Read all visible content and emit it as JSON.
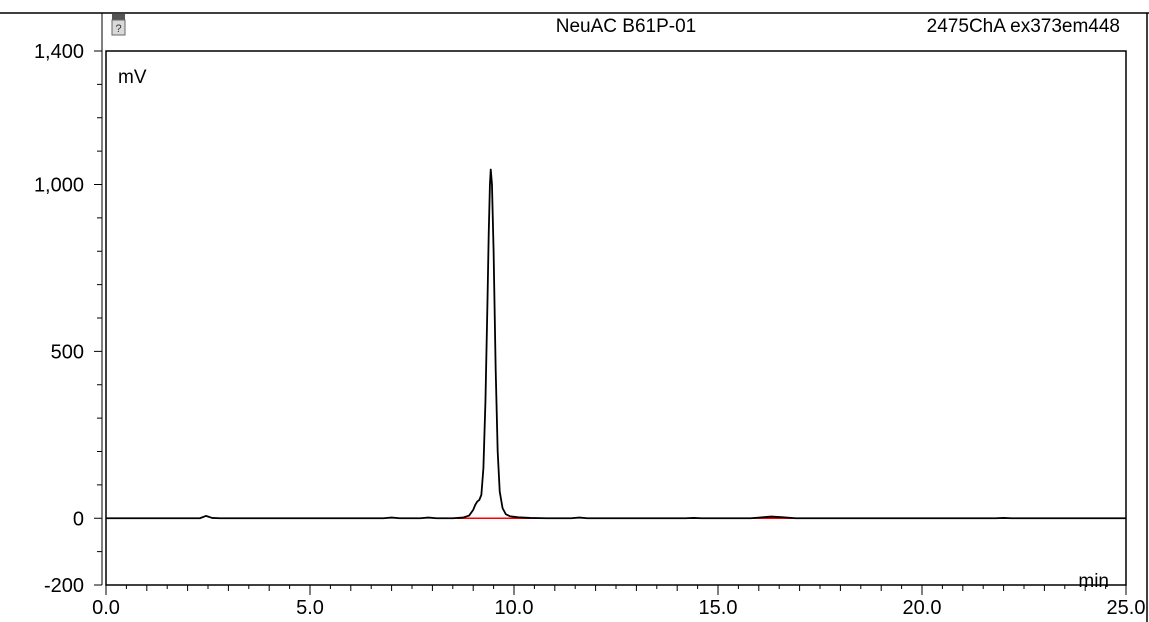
{
  "header": {
    "sample_name": "NeuAC B61P-01",
    "channel": "2475ChA ex373em448",
    "vial_icon": "vial-icon"
  },
  "chart_data": {
    "type": "line",
    "xlabel": "min",
    "ylabel": "mV",
    "xlim": [
      0,
      25
    ],
    "ylim": [
      -200,
      1400
    ],
    "x_ticks": [
      "0.0",
      "5.0",
      "10.0",
      "15.0",
      "20.0",
      "25.0"
    ],
    "x_tick_values": [
      0,
      5,
      10,
      15,
      20,
      25
    ],
    "y_ticks": [
      "-200",
      "0",
      "500",
      "1,000",
      "1,400"
    ],
    "y_tick_values": [
      -200,
      0,
      500,
      1000,
      1400
    ],
    "grid": false,
    "series": [
      {
        "color": "#000000",
        "points": [
          [
            0.0,
            0
          ],
          [
            2.3,
            0
          ],
          [
            2.45,
            7
          ],
          [
            2.6,
            1
          ],
          [
            2.8,
            0
          ],
          [
            6.8,
            0
          ],
          [
            7.0,
            2
          ],
          [
            7.2,
            0
          ],
          [
            7.7,
            0
          ],
          [
            7.9,
            2
          ],
          [
            8.1,
            0
          ],
          [
            8.5,
            0
          ],
          [
            8.75,
            2
          ],
          [
            8.9,
            8
          ],
          [
            9.0,
            25
          ],
          [
            9.05,
            40
          ],
          [
            9.1,
            50
          ],
          [
            9.15,
            55
          ],
          [
            9.2,
            70
          ],
          [
            9.25,
            150
          ],
          [
            9.3,
            350
          ],
          [
            9.35,
            650
          ],
          [
            9.38,
            850
          ],
          [
            9.41,
            1000
          ],
          [
            9.43,
            1045
          ],
          [
            9.46,
            1000
          ],
          [
            9.5,
            800
          ],
          [
            9.55,
            450
          ],
          [
            9.6,
            200
          ],
          [
            9.65,
            80
          ],
          [
            9.72,
            30
          ],
          [
            9.8,
            12
          ],
          [
            9.9,
            6
          ],
          [
            10.1,
            3
          ],
          [
            10.4,
            1
          ],
          [
            10.8,
            0
          ],
          [
            11.4,
            0
          ],
          [
            11.6,
            2
          ],
          [
            11.8,
            0
          ],
          [
            14.2,
            0
          ],
          [
            14.4,
            1
          ],
          [
            14.6,
            0
          ],
          [
            15.8,
            0
          ],
          [
            16.1,
            3
          ],
          [
            16.3,
            5
          ],
          [
            16.6,
            3
          ],
          [
            16.9,
            0
          ],
          [
            21.8,
            0
          ],
          [
            22.0,
            1
          ],
          [
            22.2,
            0
          ],
          [
            25.0,
            0
          ]
        ]
      }
    ],
    "baseline_segments": [
      {
        "color": "#ff0000",
        "x": [
          8.6,
          10.8
        ],
        "y": [
          0,
          0
        ]
      },
      {
        "color": "#ff0000",
        "x": [
          15.4,
          17.2
        ],
        "y": [
          0,
          0
        ]
      }
    ]
  }
}
